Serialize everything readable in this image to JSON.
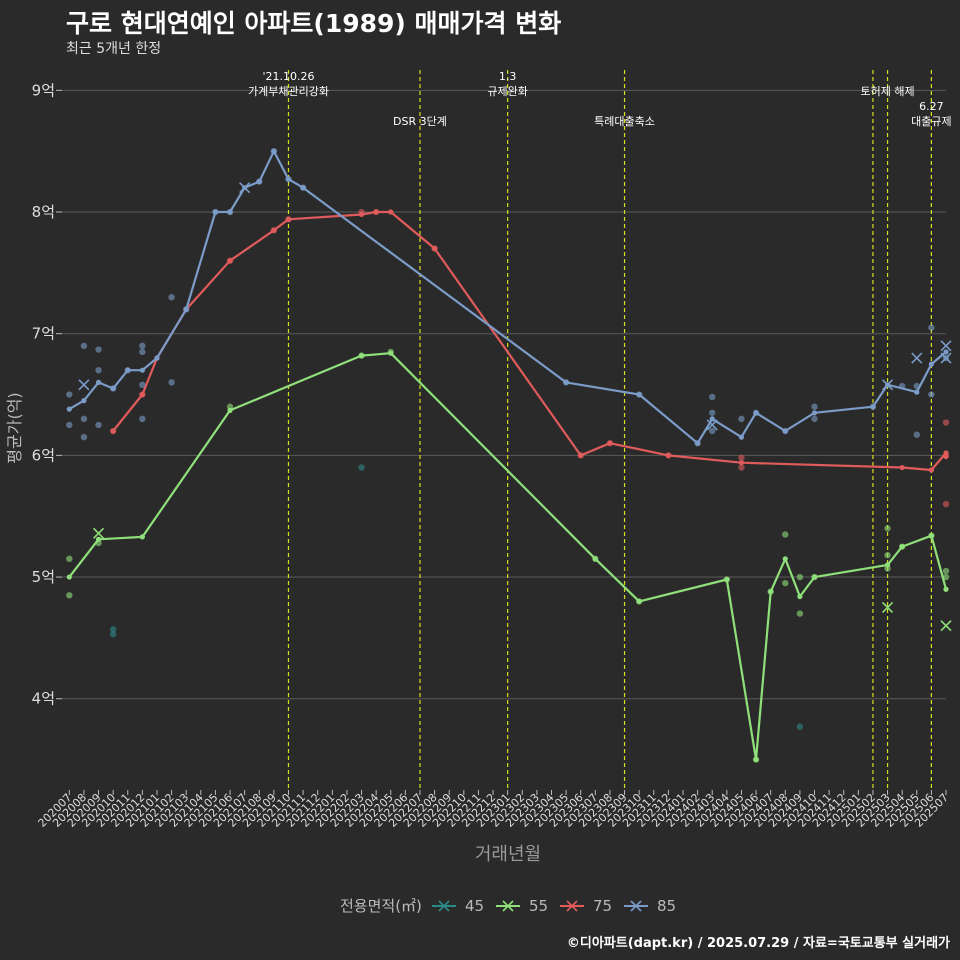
{
  "title": "구로 현대연예인 아파트(1989) 매매가격 변화",
  "subtitle": "최근 5개년 한정",
  "caption": "©디아파트(dapt.kr) / 2025.07.29 / 자료=국토교통부 실거래가",
  "chart_data": {
    "type": "line",
    "xlabel": "거래년월",
    "ylabel": "평균가(억)",
    "y_unit": "억",
    "ylim": [
      3.25,
      9.2
    ],
    "yticks": [
      4,
      5,
      6,
      7,
      8,
      9
    ],
    "ytick_labels": [
      "4억",
      "5억",
      "6억",
      "7억",
      "8억",
      "9억"
    ],
    "grid": true,
    "x_categories": [
      "202007",
      "202008",
      "202009",
      "202010",
      "202011",
      "202012",
      "202101",
      "202102",
      "202103",
      "202104",
      "202105",
      "202106",
      "202107",
      "202108",
      "202109",
      "202110",
      "202111",
      "202112",
      "202201",
      "202202",
      "202203",
      "202204",
      "202205",
      "202206",
      "202207",
      "202208",
      "202209",
      "202210",
      "202211",
      "202212",
      "202301",
      "202302",
      "202303",
      "202304",
      "202305",
      "202306",
      "202307",
      "202308",
      "202309",
      "202310",
      "202311",
      "202312",
      "202401",
      "202402",
      "202403",
      "202404",
      "202405",
      "202406",
      "202407",
      "202408",
      "202409",
      "202410",
      "202411",
      "202412",
      "202501",
      "202502",
      "202503",
      "202504",
      "202505",
      "202506",
      "202507"
    ],
    "legend": {
      "title": "전용면적(㎡)",
      "position": "bottom",
      "entries": [
        {
          "label": "45",
          "color": "#2a8a87"
        },
        {
          "label": "55",
          "color": "#8fe07a"
        },
        {
          "label": "75",
          "color": "#e05b5b"
        },
        {
          "label": "85",
          "color": "#7b9cc8"
        }
      ]
    },
    "annotations": [
      {
        "x": "202110",
        "lines": [
          "'21.10.26",
          "가계부채관리강화"
        ],
        "row": 0
      },
      {
        "x": "202207",
        "lines": [
          "DSR 3단계"
        ],
        "row": 1
      },
      {
        "x": "202301",
        "lines": [
          "1.3",
          "규제완화"
        ],
        "row": 0
      },
      {
        "x": "202309",
        "lines": [
          "특례대출축소"
        ],
        "row": 1
      },
      {
        "x": "202503",
        "lines": [
          "토허제 해제"
        ],
        "row": 0
      },
      {
        "x": "202506",
        "lines": [
          "6.27",
          "대출규제"
        ],
        "row": 1
      }
    ],
    "vlines": [
      "202110",
      "202207",
      "202301",
      "202309",
      "202502",
      "202503",
      "202506"
    ],
    "series": [
      {
        "name": "45",
        "color": "#2a8a87",
        "line": [],
        "points": [
          [
            "202010",
            4.57
          ],
          [
            "202010",
            4.53
          ],
          [
            "202203",
            5.9
          ],
          [
            "202409",
            3.77
          ]
        ],
        "crosses": []
      },
      {
        "name": "55",
        "color": "#8fe07a",
        "line": [
          [
            "202007",
            5.0
          ],
          [
            "202009",
            5.31
          ],
          [
            "202012",
            5.33
          ],
          [
            "202106",
            6.37
          ],
          [
            "202203",
            6.82
          ],
          [
            "202205",
            6.84
          ],
          [
            "202307",
            5.15
          ],
          [
            "202310",
            4.8
          ],
          [
            "202404",
            4.98
          ],
          [
            "202406",
            3.5
          ],
          [
            "202407",
            4.88
          ],
          [
            "202408",
            5.15
          ],
          [
            "202409",
            4.84
          ],
          [
            "202410",
            5.0
          ],
          [
            "202503",
            5.1
          ],
          [
            "202504",
            5.25
          ],
          [
            "202506",
            5.34
          ],
          [
            "202507",
            4.9
          ]
        ],
        "points": [
          [
            "202007",
            5.15
          ],
          [
            "202007",
            4.85
          ],
          [
            "202009",
            5.28
          ],
          [
            "202106",
            6.4
          ],
          [
            "202203",
            6.82
          ],
          [
            "202205",
            6.85
          ],
          [
            "202307",
            5.15
          ],
          [
            "202310",
            4.8
          ],
          [
            "202404",
            4.98
          ],
          [
            "202406",
            3.5
          ],
          [
            "202407",
            4.88
          ],
          [
            "202408",
            5.35
          ],
          [
            "202408",
            4.95
          ],
          [
            "202409",
            5.0
          ],
          [
            "202409",
            4.7
          ],
          [
            "202410",
            5.0
          ],
          [
            "202503",
            5.4
          ],
          [
            "202503",
            5.18
          ],
          [
            "202503",
            5.07
          ],
          [
            "202504",
            5.25
          ],
          [
            "202506",
            5.34
          ],
          [
            "202507",
            5.05
          ],
          [
            "202507",
            5.0
          ]
        ],
        "crosses": [
          [
            "202009",
            5.36
          ],
          [
            "202503",
            4.75
          ],
          [
            "202507",
            4.6
          ]
        ]
      },
      {
        "name": "75",
        "color": "#e05b5b",
        "line": [
          [
            "202010",
            6.2
          ],
          [
            "202012",
            6.5
          ],
          [
            "202101",
            6.8
          ],
          [
            "202103",
            7.2
          ],
          [
            "202106",
            7.6
          ],
          [
            "202109",
            7.85
          ],
          [
            "202110",
            7.94
          ],
          [
            "202203",
            7.98
          ],
          [
            "202204",
            8.0
          ],
          [
            "202205",
            8.0
          ],
          [
            "202208",
            7.7
          ],
          [
            "202306",
            6.0
          ],
          [
            "202308",
            6.1
          ],
          [
            "202312",
            6.0
          ],
          [
            "202405",
            5.94
          ],
          [
            "202504",
            5.9
          ],
          [
            "202506",
            5.88
          ],
          [
            "202507",
            6.02
          ],
          [
            "202507",
            5.99
          ]
        ],
        "points": [
          [
            "202010",
            6.2
          ],
          [
            "202012",
            6.5
          ],
          [
            "202106",
            7.6
          ],
          [
            "202109",
            7.85
          ],
          [
            "202110",
            7.94
          ],
          [
            "202203",
            8.0
          ],
          [
            "202204",
            8.0
          ],
          [
            "202208",
            7.7
          ],
          [
            "202306",
            6.0
          ],
          [
            "202308",
            6.1
          ],
          [
            "202312",
            6.0
          ],
          [
            "202405",
            5.98
          ],
          [
            "202405",
            5.9
          ],
          [
            "202507",
            6.27
          ],
          [
            "202507",
            6.0
          ],
          [
            "202507",
            5.6
          ]
        ],
        "crosses": []
      },
      {
        "name": "85",
        "color": "#7b9cc8",
        "line": [
          [
            "202007",
            6.38
          ],
          [
            "202008",
            6.45
          ],
          [
            "202009",
            6.6
          ],
          [
            "202010",
            6.55
          ],
          [
            "202011",
            6.7
          ],
          [
            "202012",
            6.7
          ],
          [
            "202101",
            6.8
          ],
          [
            "202103",
            7.2
          ],
          [
            "202105",
            8.0
          ],
          [
            "202106",
            8.0
          ],
          [
            "202107",
            8.2
          ],
          [
            "202108",
            8.25
          ],
          [
            "202109",
            8.5
          ],
          [
            "202110",
            8.27
          ],
          [
            "202111",
            8.2
          ],
          [
            "202305",
            6.6
          ],
          [
            "202310",
            6.5
          ],
          [
            "202402",
            6.1
          ],
          [
            "202403",
            6.3
          ],
          [
            "202405",
            6.15
          ],
          [
            "202406",
            6.35
          ],
          [
            "202408",
            6.2
          ],
          [
            "202410",
            6.35
          ],
          [
            "202502",
            6.4
          ],
          [
            "202503",
            6.58
          ],
          [
            "202505",
            6.52
          ],
          [
            "202506",
            6.75
          ],
          [
            "202507",
            6.85
          ]
        ],
        "points": [
          [
            "202007",
            6.5
          ],
          [
            "202007",
            6.25
          ],
          [
            "202008",
            6.9
          ],
          [
            "202008",
            6.3
          ],
          [
            "202008",
            6.15
          ],
          [
            "202009",
            6.87
          ],
          [
            "202009",
            6.7
          ],
          [
            "202009",
            6.25
          ],
          [
            "202010",
            6.55
          ],
          [
            "202011",
            6.7
          ],
          [
            "202012",
            6.9
          ],
          [
            "202012",
            6.85
          ],
          [
            "202012",
            6.58
          ],
          [
            "202012",
            6.3
          ],
          [
            "202102",
            7.3
          ],
          [
            "202102",
            6.6
          ],
          [
            "202103",
            7.2
          ],
          [
            "202105",
            8.0
          ],
          [
            "202106",
            8.0
          ],
          [
            "202108",
            8.25
          ],
          [
            "202109",
            8.5
          ],
          [
            "202110",
            8.27
          ],
          [
            "202111",
            8.2
          ],
          [
            "202305",
            6.6
          ],
          [
            "202310",
            6.5
          ],
          [
            "202402",
            6.1
          ],
          [
            "202403",
            6.48
          ],
          [
            "202403",
            6.35
          ],
          [
            "202403",
            6.2
          ],
          [
            "202405",
            6.3
          ],
          [
            "202406",
            6.35
          ],
          [
            "202408",
            6.2
          ],
          [
            "202410",
            6.4
          ],
          [
            "202410",
            6.3
          ],
          [
            "202502",
            6.4
          ],
          [
            "202504",
            6.57
          ],
          [
            "202505",
            6.17
          ],
          [
            "202505",
            6.57
          ],
          [
            "202506",
            7.05
          ],
          [
            "202506",
            6.5
          ],
          [
            "202507",
            6.8
          ]
        ],
        "crosses": [
          [
            "202008",
            6.58
          ],
          [
            "202107",
            8.2
          ],
          [
            "202403",
            6.25
          ],
          [
            "202503",
            6.58
          ],
          [
            "202505",
            6.8
          ],
          [
            "202507",
            6.9
          ],
          [
            "202507",
            6.8
          ]
        ]
      }
    ]
  }
}
